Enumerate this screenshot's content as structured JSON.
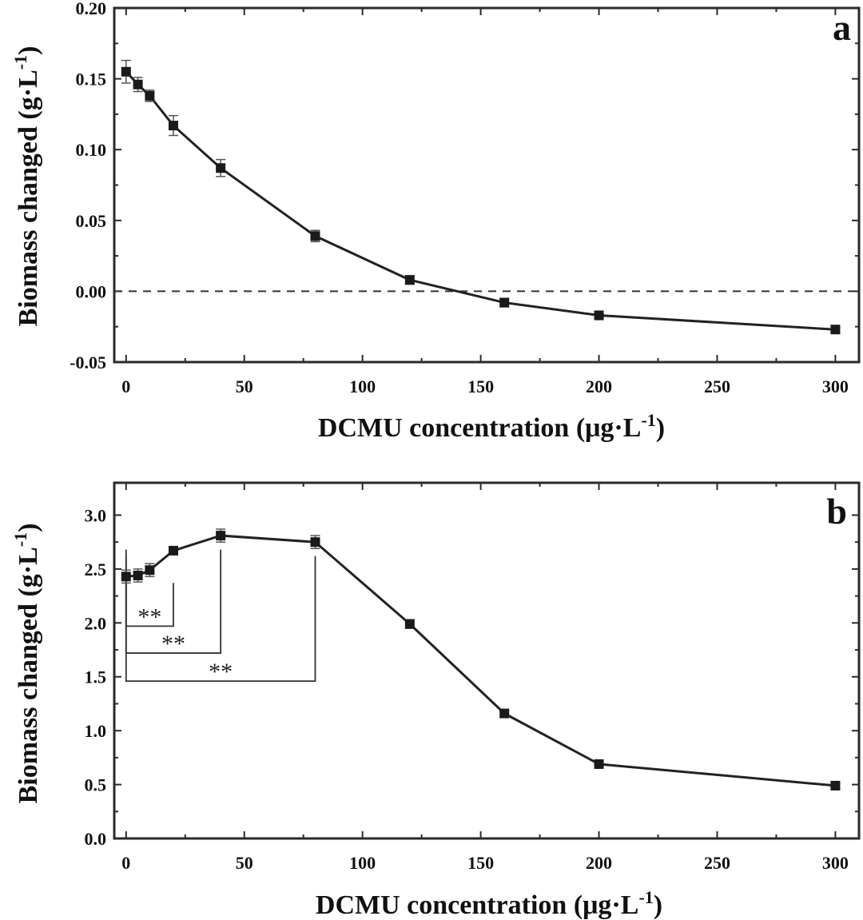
{
  "chart_data": [
    {
      "type": "line",
      "panel_label": "a",
      "xlabel": "DCMU concentration (μg·L",
      "xlabel_sup": "-1",
      "xlabel_end": ")",
      "ylabel": "Biomass changed (g·L",
      "ylabel_sup": "-1",
      "ylabel_end": ")",
      "xlim": [
        -5,
        310
      ],
      "ylim": [
        -0.05,
        0.2
      ],
      "xticks": [
        0,
        50,
        100,
        150,
        200,
        250,
        300
      ],
      "yticks": [
        -0.05,
        0.0,
        0.05,
        0.1,
        0.15,
        0.2
      ],
      "xtick_labels": [
        "0",
        "50",
        "100",
        "150",
        "200",
        "250",
        "300"
      ],
      "ytick_labels": [
        "-0.05",
        "0.00",
        "0.05",
        "0.10",
        "0.15",
        "0.20"
      ],
      "reference_line": {
        "y": 0.0,
        "style": "dashed"
      },
      "grid": false,
      "series": [
        {
          "x": [
            0,
            5,
            10,
            20,
            40,
            80,
            120,
            160,
            200,
            300
          ],
          "y": [
            0.155,
            0.146,
            0.138,
            0.117,
            0.087,
            0.039,
            0.008,
            -0.008,
            -0.017,
            -0.027
          ],
          "err": [
            0.008,
            0.005,
            0.004,
            0.007,
            0.006,
            0.004,
            0.003,
            0.003,
            0.003,
            0.002
          ]
        }
      ]
    },
    {
      "type": "line",
      "panel_label": "b",
      "xlabel": "DCMU concentration (μg·L",
      "xlabel_sup": "-1",
      "xlabel_end": ")",
      "ylabel": "Biomass changed (g·L",
      "ylabel_sup": "-1",
      "ylabel_end": ")",
      "xlim": [
        -5,
        310
      ],
      "ylim": [
        0.0,
        3.3
      ],
      "xticks": [
        0,
        50,
        100,
        150,
        200,
        250,
        300
      ],
      "yticks": [
        0.0,
        0.5,
        1.0,
        1.5,
        2.0,
        2.5,
        3.0
      ],
      "xtick_labels": [
        "0",
        "50",
        "100",
        "150",
        "200",
        "250",
        "300"
      ],
      "ytick_labels": [
        "0.0",
        "0.5",
        "1.0",
        "1.5",
        "2.0",
        "2.5",
        "3.0"
      ],
      "grid": false,
      "series": [
        {
          "x": [
            0,
            5,
            10,
            20,
            40,
            80,
            120,
            160,
            200,
            300
          ],
          "y": [
            2.43,
            2.44,
            2.49,
            2.67,
            2.81,
            2.75,
            1.99,
            1.16,
            0.69,
            0.49
          ],
          "err": [
            0.06,
            0.06,
            0.06,
            0.02,
            0.06,
            0.06,
            0.04,
            0.02,
            0.02,
            0.02
          ]
        }
      ],
      "significance": [
        {
          "from_x": 0,
          "to_x": 20,
          "bracket_y": 1.97,
          "top_y": 2.37,
          "label": "**"
        },
        {
          "from_x": 0,
          "to_x": 40,
          "bracket_y": 1.72,
          "top_y": 2.68,
          "label": "**"
        },
        {
          "from_x": 0,
          "to_x": 80,
          "bracket_y": 1.46,
          "top_y": 2.62,
          "label": "**"
        }
      ]
    }
  ]
}
